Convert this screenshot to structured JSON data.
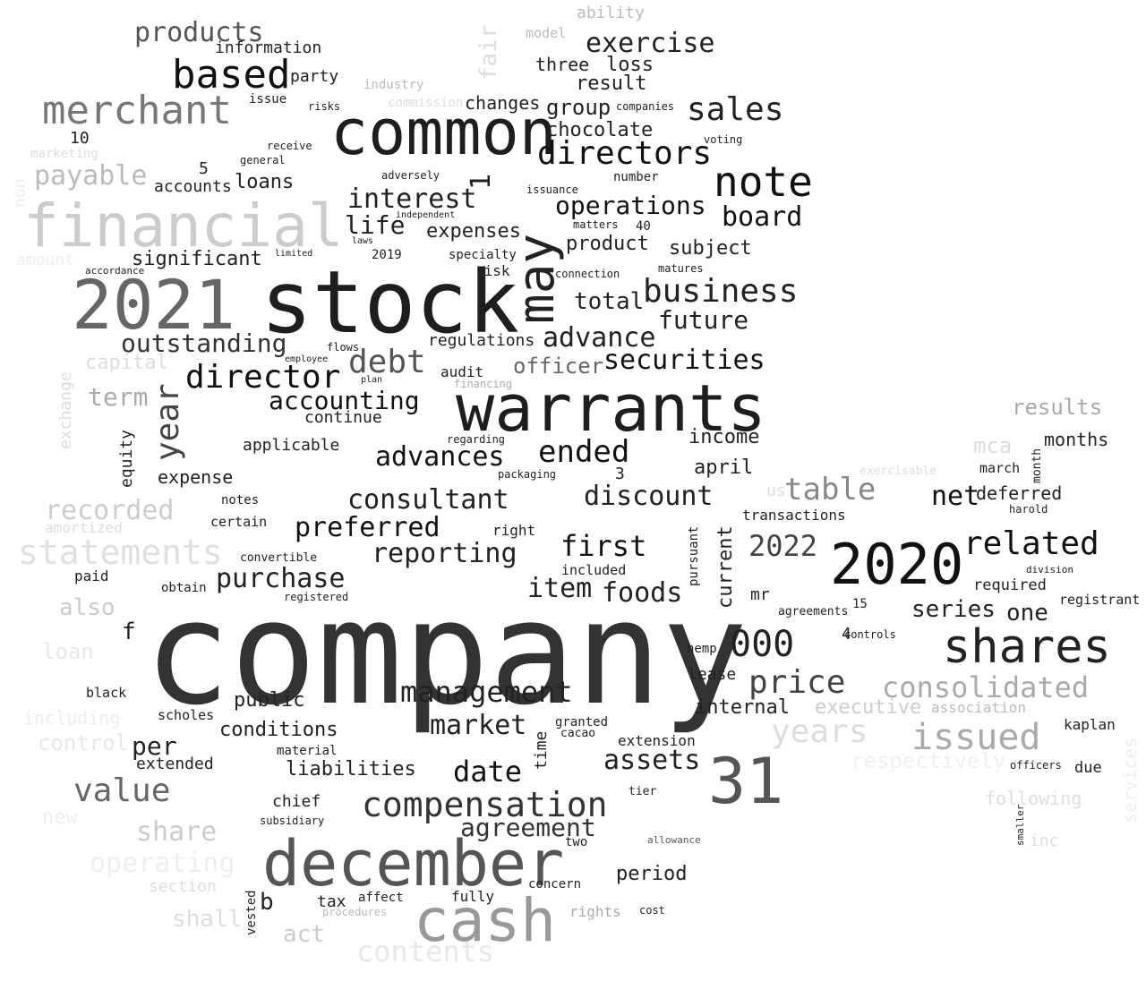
{
  "word_cloud": {
    "words": [
      {
        "text": "company",
        "weight": 1.0,
        "color": "#333333"
      },
      {
        "text": "stock",
        "weight": 0.68,
        "color": "#1e1e1e"
      },
      {
        "text": "warrants",
        "weight": 0.58,
        "color": "#1e1e1e"
      },
      {
        "text": "common",
        "weight": 0.56,
        "color": "#1e1e1e"
      },
      {
        "text": "december",
        "weight": 0.58,
        "color": "#555555"
      },
      {
        "text": "financial",
        "weight": 0.56,
        "color": "#cccccc"
      },
      {
        "text": "2021",
        "weight": 0.58,
        "color": "#666666"
      },
      {
        "text": "2020",
        "weight": 0.55,
        "color": "#111111"
      },
      {
        "text": "cash",
        "weight": 0.55,
        "color": "#999999"
      },
      {
        "text": "31",
        "weight": 0.55,
        "color": "#555555"
      },
      {
        "text": "may",
        "weight": 0.45,
        "color": "#222222"
      },
      {
        "text": "shares",
        "weight": 0.45,
        "color": "#222222"
      },
      {
        "text": "note",
        "weight": 0.4,
        "color": "#111111"
      },
      {
        "text": "merchant",
        "weight": 0.39,
        "color": "#777777"
      },
      {
        "text": "based",
        "weight": 0.39,
        "color": "#111111"
      },
      {
        "text": "statements",
        "weight": 0.34,
        "color": "#e0e0e0"
      },
      {
        "text": "consolidated",
        "weight": 0.29,
        "color": "#aaaaaa"
      },
      {
        "text": "issued",
        "weight": 0.33,
        "color": "#aaaaaa"
      },
      {
        "text": "000",
        "weight": 0.35,
        "color": "#222222"
      },
      {
        "text": "compensation",
        "weight": 0.33,
        "color": "#333333"
      },
      {
        "text": "directors",
        "weight": 0.31,
        "color": "#111111"
      },
      {
        "text": "sales",
        "weight": 0.31,
        "color": "#222222"
      },
      {
        "text": "price",
        "weight": 0.3,
        "color": "#444444"
      },
      {
        "text": "director",
        "weight": 0.31,
        "color": "#111111"
      },
      {
        "text": "debt",
        "weight": 0.31,
        "color": "#555555"
      },
      {
        "text": "business",
        "weight": 0.31,
        "color": "#222222"
      },
      {
        "text": "value",
        "weight": 0.3,
        "color": "#666666"
      },
      {
        "text": "table",
        "weight": 0.3,
        "color": "#888888"
      },
      {
        "text": "related",
        "weight": 0.31,
        "color": "#111111"
      },
      {
        "text": "management",
        "weight": 0.27,
        "color": "#222222"
      },
      {
        "text": "years",
        "weight": 0.29,
        "color": "#dddddd"
      },
      {
        "text": "year",
        "weight": 0.31,
        "color": "#444444"
      },
      {
        "text": "exercise",
        "weight": 0.25,
        "color": "#222222"
      },
      {
        "text": "products",
        "weight": 0.25,
        "color": "#555555"
      },
      {
        "text": "interest",
        "weight": 0.25,
        "color": "#222222"
      },
      {
        "text": "operations",
        "weight": 0.24,
        "color": "#111111"
      },
      {
        "text": "board",
        "weight": 0.25,
        "color": "#111111"
      },
      {
        "text": "payable",
        "weight": 0.25,
        "color": "#bbbbbb"
      },
      {
        "text": "outstanding",
        "weight": 0.24,
        "color": "#333333"
      },
      {
        "text": "advance",
        "weight": 0.25,
        "color": "#222222"
      },
      {
        "text": "securities",
        "weight": 0.25,
        "color": "#111111"
      },
      {
        "text": "future",
        "weight": 0.23,
        "color": "#222222"
      },
      {
        "text": "accounting",
        "weight": 0.24,
        "color": "#111111"
      },
      {
        "text": "advances",
        "weight": 0.25,
        "color": "#111111"
      },
      {
        "text": "ended",
        "weight": 0.28,
        "color": "#111111"
      },
      {
        "text": "consultant",
        "weight": 0.25,
        "color": "#222222"
      },
      {
        "text": "discount",
        "weight": 0.25,
        "color": "#222222"
      },
      {
        "text": "net",
        "weight": 0.25,
        "color": "#111111"
      },
      {
        "text": "preferred",
        "weight": 0.25,
        "color": "#111111"
      },
      {
        "text": "first",
        "weight": 0.27,
        "color": "#111111"
      },
      {
        "text": "reporting",
        "weight": 0.25,
        "color": "#222222"
      },
      {
        "text": "purchase",
        "weight": 0.25,
        "color": "#222222"
      },
      {
        "text": "item",
        "weight": 0.25,
        "color": "#222222"
      },
      {
        "text": "foods",
        "weight": 0.25,
        "color": "#222222"
      },
      {
        "text": "2022",
        "weight": 0.27,
        "color": "#444444"
      },
      {
        "text": "recorded",
        "weight": 0.25,
        "color": "#cccccc"
      },
      {
        "text": "market",
        "weight": 0.25,
        "color": "#222222"
      },
      {
        "text": "date",
        "weight": 0.27,
        "color": "#111111"
      },
      {
        "text": "assets",
        "weight": 0.25,
        "color": "#222222"
      },
      {
        "text": "agreement",
        "weight": 0.23,
        "color": "#333333"
      },
      {
        "text": "share",
        "weight": 0.25,
        "color": "#cccccc"
      },
      {
        "text": "operating",
        "weight": 0.25,
        "color": "#eeeeee"
      },
      {
        "text": "series",
        "weight": 0.22,
        "color": "#222222"
      },
      {
        "text": "one",
        "weight": 0.22,
        "color": "#222222"
      },
      {
        "text": "executive",
        "weight": 0.19,
        "color": "#cccccc"
      },
      {
        "text": "respectively",
        "weight": 0.21,
        "color": "#f0f0f0"
      },
      {
        "text": "results",
        "weight": 0.2,
        "color": "#aaaaaa"
      },
      {
        "text": "capital",
        "weight": 0.19,
        "color": "#dddddd"
      },
      {
        "text": "term",
        "weight": 0.23,
        "color": "#aaaaaa"
      },
      {
        "text": "group",
        "weight": 0.2,
        "color": "#222222"
      },
      {
        "text": "chocolate",
        "weight": 0.19,
        "color": "#222222"
      },
      {
        "text": "result",
        "weight": 0.18,
        "color": "#222222"
      },
      {
        "text": "loss",
        "weight": 0.18,
        "color": "#222222"
      },
      {
        "text": "three",
        "weight": 0.16,
        "color": "#222222"
      },
      {
        "text": "changes",
        "weight": 0.17,
        "color": "#222222"
      },
      {
        "text": "expenses",
        "weight": 0.17,
        "color": "#222222"
      },
      {
        "text": "life",
        "weight": 0.2,
        "color": "#222222"
      },
      {
        "text": "significant",
        "weight": 0.17,
        "color": "#222222"
      },
      {
        "text": "product",
        "weight": 0.17,
        "color": "#222222"
      },
      {
        "text": "subject",
        "weight": 0.17,
        "color": "#222222"
      },
      {
        "text": "total",
        "weight": 0.2,
        "color": "#222222"
      },
      {
        "text": "officer",
        "weight": 0.19,
        "color": "#666666"
      },
      {
        "text": "regulations",
        "weight": 0.15,
        "color": "#222222"
      },
      {
        "text": "income",
        "weight": 0.17,
        "color": "#222222"
      },
      {
        "text": "april",
        "weight": 0.17,
        "color": "#222222"
      },
      {
        "text": "deferred",
        "weight": 0.16,
        "color": "#222222"
      },
      {
        "text": "months",
        "weight": 0.16,
        "color": "#222222"
      },
      {
        "text": "mca",
        "weight": 0.19,
        "color": "#dddddd"
      },
      {
        "text": "loans",
        "weight": 0.18,
        "color": "#222222"
      },
      {
        "text": "accounts",
        "weight": 0.15,
        "color": "#222222"
      },
      {
        "text": "party",
        "weight": 0.15,
        "color": "#222222"
      },
      {
        "text": "information",
        "weight": 0.15,
        "color": "#222222"
      },
      {
        "text": "continue",
        "weight": 0.15,
        "color": "#222222"
      },
      {
        "text": "applicable",
        "weight": 0.15,
        "color": "#222222"
      },
      {
        "text": "expense",
        "weight": 0.15,
        "color": "#222222"
      },
      {
        "text": "equity",
        "weight": 0.15,
        "color": "#222222"
      },
      {
        "text": "conditions",
        "weight": 0.17,
        "color": "#222222"
      },
      {
        "text": "liabilities",
        "weight": 0.17,
        "color": "#222222"
      },
      {
        "text": "extended",
        "weight": 0.15,
        "color": "#222222"
      },
      {
        "text": "per",
        "weight": 0.2,
        "color": "#222222"
      },
      {
        "text": "public",
        "weight": 0.17,
        "color": "#222222"
      },
      {
        "text": "chief",
        "weight": 0.15,
        "color": "#222222"
      },
      {
        "text": "lease",
        "weight": 0.15,
        "color": "#222222"
      },
      {
        "text": "internal",
        "weight": 0.17,
        "color": "#222222"
      },
      {
        "text": "period",
        "weight": 0.17,
        "color": "#222222"
      },
      {
        "text": "tax",
        "weight": 0.15,
        "color": "#222222"
      },
      {
        "text": "right",
        "weight": 0.13,
        "color": "#222222"
      },
      {
        "text": "current",
        "weight": 0.17,
        "color": "#222222"
      },
      {
        "text": "mr",
        "weight": 0.15,
        "color": "#222222"
      },
      {
        "text": "also",
        "weight": 0.2,
        "color": "#cccccc"
      },
      {
        "text": "loan",
        "weight": 0.18,
        "color": "#e8e8e8"
      },
      {
        "text": "act",
        "weight": 0.2,
        "color": "#cccccc"
      },
      {
        "text": "contents",
        "weight": 0.25,
        "color": "#e8e8e8"
      },
      {
        "text": "shall",
        "weight": 0.2,
        "color": "#dddddd"
      },
      {
        "text": "amortized",
        "weight": 0.13,
        "color": "#dddddd"
      },
      {
        "text": "required",
        "weight": 0.13,
        "color": "#222222"
      },
      {
        "text": "registrant",
        "weight": 0.11,
        "color": "#222222"
      },
      {
        "text": "kaplan",
        "weight": 0.12,
        "color": "#222222"
      },
      {
        "text": "due",
        "weight": 0.13,
        "color": "#222222"
      },
      {
        "text": "following",
        "weight": 0.16,
        "color": "#dddddd"
      },
      {
        "text": "association",
        "weight": 0.13,
        "color": "#bbbbbb"
      },
      {
        "text": "transactions",
        "weight": 0.13,
        "color": "#222222"
      },
      {
        "text": "fully",
        "weight": 0.13,
        "color": "#222222"
      },
      {
        "text": "rights",
        "weight": 0.13,
        "color": "#aaaaaa"
      },
      {
        "text": "concern",
        "weight": 0.11,
        "color": "#222222"
      },
      {
        "text": "two",
        "weight": 0.11,
        "color": "#222222"
      },
      {
        "text": "affect",
        "weight": 0.11,
        "color": "#222222"
      },
      {
        "text": "procedures",
        "weight": 0.1,
        "color": "#bbbbbb"
      },
      {
        "text": "cost",
        "weight": 0.1,
        "color": "#222222"
      },
      {
        "text": "subsidiary",
        "weight": 0.1,
        "color": "#222222"
      },
      {
        "text": "black",
        "weight": 0.12,
        "color": "#222222"
      },
      {
        "text": "scholes",
        "weight": 0.12,
        "color": "#222222"
      },
      {
        "text": "material",
        "weight": 0.11,
        "color": "#222222"
      },
      {
        "text": "paid",
        "weight": 0.13,
        "color": "#222222"
      },
      {
        "text": "obtain",
        "weight": 0.11,
        "color": "#222222"
      },
      {
        "text": "notes",
        "weight": 0.11,
        "color": "#222222"
      },
      {
        "text": "certain",
        "weight": 0.12,
        "color": "#222222"
      },
      {
        "text": "convertible",
        "weight": 0.1,
        "color": "#222222"
      },
      {
        "text": "registered",
        "weight": 0.1,
        "color": "#222222"
      },
      {
        "text": "flows",
        "weight": 0.1,
        "color": "#222222"
      },
      {
        "text": "employee",
        "weight": 0.08,
        "color": "#222222"
      },
      {
        "text": "plan",
        "weight": 0.08,
        "color": "#222222"
      },
      {
        "text": "audit",
        "weight": 0.13,
        "color": "#222222"
      },
      {
        "text": "financing",
        "weight": 0.1,
        "color": "#aaaaaa"
      },
      {
        "text": "regarding",
        "weight": 0.1,
        "color": "#222222"
      },
      {
        "text": "packaging",
        "weight": 0.1,
        "color": "#222222"
      },
      {
        "text": "specialty",
        "weight": 0.12,
        "color": "#222222"
      },
      {
        "text": "risk",
        "weight": 0.13,
        "color": "#222222"
      },
      {
        "text": "connection",
        "weight": 0.1,
        "color": "#222222"
      },
      {
        "text": "matures",
        "weight": 0.1,
        "color": "#222222"
      },
      {
        "text": "matters",
        "weight": 0.1,
        "color": "#222222"
      },
      {
        "text": "issuance",
        "weight": 0.1,
        "color": "#222222"
      },
      {
        "text": "number",
        "weight": 0.12,
        "color": "#222222"
      },
      {
        "text": "voting",
        "weight": 0.09,
        "color": "#222222"
      },
      {
        "text": "companies",
        "weight": 0.1,
        "color": "#222222"
      },
      {
        "text": "risks",
        "weight": 0.1,
        "color": "#222222"
      },
      {
        "text": "issue",
        "weight": 0.12,
        "color": "#222222"
      },
      {
        "text": "receive",
        "weight": 0.1,
        "color": "#222222"
      },
      {
        "text": "general",
        "weight": 0.1,
        "color": "#222222"
      },
      {
        "text": "adversely",
        "weight": 0.09,
        "color": "#222222"
      },
      {
        "text": "independent",
        "weight": 0.08,
        "color": "#222222"
      },
      {
        "text": "laws",
        "weight": 0.09,
        "color": "#222222"
      },
      {
        "text": "limited",
        "weight": 0.08,
        "color": "#222222"
      },
      {
        "text": "accordance",
        "weight": 0.08,
        "color": "#222222"
      },
      {
        "text": "industry",
        "weight": 0.11,
        "color": "#bbbbbb"
      },
      {
        "text": "commission",
        "weight": 0.11,
        "color": "#dddddd"
      },
      {
        "text": "ability",
        "weight": 0.14,
        "color": "#bbbbbb"
      },
      {
        "text": "model",
        "weight": 0.12,
        "color": "#bbbbbb"
      },
      {
        "text": "fair",
        "weight": 0.2,
        "color": "#dddddd"
      },
      {
        "text": "amount",
        "weight": 0.14,
        "color": "#eeeeee"
      },
      {
        "text": "exchange",
        "weight": 0.13,
        "color": "#dddddd"
      },
      {
        "text": "including",
        "weight": 0.15,
        "color": "#eeeeee"
      },
      {
        "text": "control",
        "weight": 0.17,
        "color": "#e8e8e8"
      },
      {
        "text": "new",
        "weight": 0.16,
        "color": "#eeeeee"
      },
      {
        "text": "section",
        "weight": 0.13,
        "color": "#dddddd"
      },
      {
        "text": "marketing",
        "weight": 0.1,
        "color": "#dddddd"
      },
      {
        "text": "non",
        "weight": 0.13,
        "color": "#eeeeee"
      },
      {
        "text": "exercisable",
        "weight": 0.1,
        "color": "#dddddd"
      },
      {
        "text": "us",
        "weight": 0.15,
        "color": "#dddddd"
      },
      {
        "text": "inc",
        "weight": 0.15,
        "color": "#dddddd"
      },
      {
        "text": "services",
        "weight": 0.17,
        "color": "#eeeeee"
      },
      {
        "text": "vested",
        "weight": 0.09,
        "color": "#222222"
      },
      {
        "text": "b",
        "weight": 0.2,
        "color": "#222222"
      },
      {
        "text": "f",
        "weight": 0.2,
        "color": "#222222"
      },
      {
        "text": "1",
        "weight": 0.25,
        "color": "#222222"
      },
      {
        "text": "3",
        "weight": 0.14,
        "color": "#222222"
      },
      {
        "text": "4",
        "weight": 0.14,
        "color": "#222222"
      },
      {
        "text": "5",
        "weight": 0.14,
        "color": "#222222"
      },
      {
        "text": "10",
        "weight": 0.14,
        "color": "#222222"
      },
      {
        "text": "15",
        "weight": 0.1,
        "color": "#222222"
      },
      {
        "text": "40",
        "weight": 0.1,
        "color": "#222222"
      },
      {
        "text": "2019",
        "weight": 0.1,
        "color": "#222222"
      },
      {
        "text": "granted",
        "weight": 0.1,
        "color": "#222222"
      },
      {
        "text": "cacao",
        "weight": 0.09,
        "color": "#222222"
      },
      {
        "text": "extension",
        "weight": 0.12,
        "color": "#222222"
      },
      {
        "text": "tier",
        "weight": 0.09,
        "color": "#222222"
      },
      {
        "text": "agreements",
        "weight": 0.09,
        "color": "#222222"
      },
      {
        "text": "controls",
        "weight": 0.08,
        "color": "#222222"
      },
      {
        "text": "hemp",
        "weight": 0.1,
        "color": "#222222"
      },
      {
        "text": "included",
        "weight": 0.11,
        "color": "#222222"
      },
      {
        "text": "pursuant",
        "weight": 0.1,
        "color": "#222222"
      },
      {
        "text": "march",
        "weight": 0.1,
        "color": "#222222"
      },
      {
        "text": "month",
        "weight": 0.09,
        "color": "#222222"
      },
      {
        "text": "harold",
        "weight": 0.08,
        "color": "#222222"
      },
      {
        "text": "division",
        "weight": 0.08,
        "color": "#222222"
      },
      {
        "text": "officers",
        "weight": 0.09,
        "color": "#222222"
      },
      {
        "text": "smaller",
        "weight": 0.07,
        "color": "#222222"
      },
      {
        "text": "time",
        "weight": 0.12,
        "color": "#222222"
      },
      {
        "text": "allowance",
        "weight": 0.08,
        "color": "#555555"
      }
    ]
  }
}
